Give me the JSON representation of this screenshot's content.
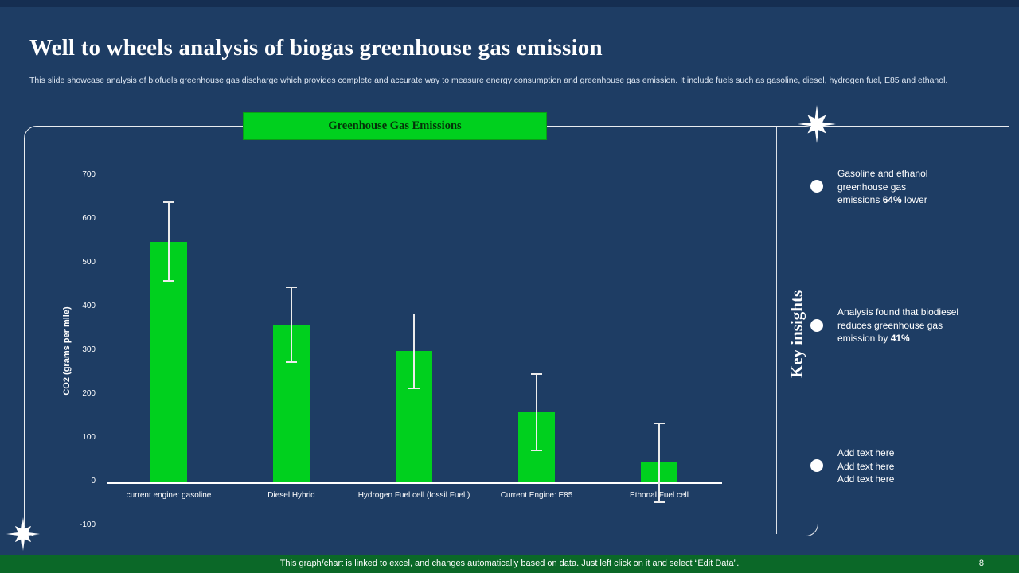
{
  "slide": {
    "title": "Well to wheels analysis of biogas greenhouse gas emission",
    "subtitle": "This slide showcase analysis of biofuels greenhouse gas discharge which provides complete and accurate way to measure energy consumption and greenhouse gas emission. It include fuels such as gasoline, diesel, hydrogen fuel, E85 and ethanol.",
    "footer_note": "This graph/chart is linked to excel, and changes automatically based on data. Just left click on it and select “Edit Data”.",
    "page_number": "8"
  },
  "chart_data": {
    "type": "bar",
    "title": "Greenhouse Gas Emissions",
    "categories": [
      "current engine: gasoline",
      "Diesel Hybrid",
      "Hydrogen Fuel cell (fossil Fuel )",
      "Current Engine: E85",
      "Ethonal Fuel cell"
    ],
    "values": [
      550,
      360,
      300,
      160,
      45
    ],
    "error_bars": [
      90,
      85,
      85,
      87,
      90
    ],
    "xlabel": "",
    "ylabel": "CO2 (grams per mile)",
    "ylim": [
      -100,
      700
    ],
    "yticks": [
      700,
      600,
      500,
      400,
      300,
      200,
      100,
      0,
      -100
    ],
    "grid": false,
    "legend": "none",
    "bar_color": "#00d01e",
    "error_color": "#ececec"
  },
  "key_insights": {
    "label": "Key insights",
    "items": [
      {
        "pre": "Gasoline and ethanol\ngreenhouse gas\nemissions ",
        "bold": "64%",
        "post": " lower"
      },
      {
        "pre": "Analysis found that biodiesel\nreduces greenhouse gas\nemission by ",
        "bold": "41%",
        "post": ""
      },
      {
        "pre": "Add text here\nAdd text here\nAdd text here",
        "bold": "",
        "post": ""
      }
    ]
  },
  "colors": {
    "accent_green": "#00d01e",
    "footer_green": "#0b6828",
    "background": "#1e3d64"
  }
}
